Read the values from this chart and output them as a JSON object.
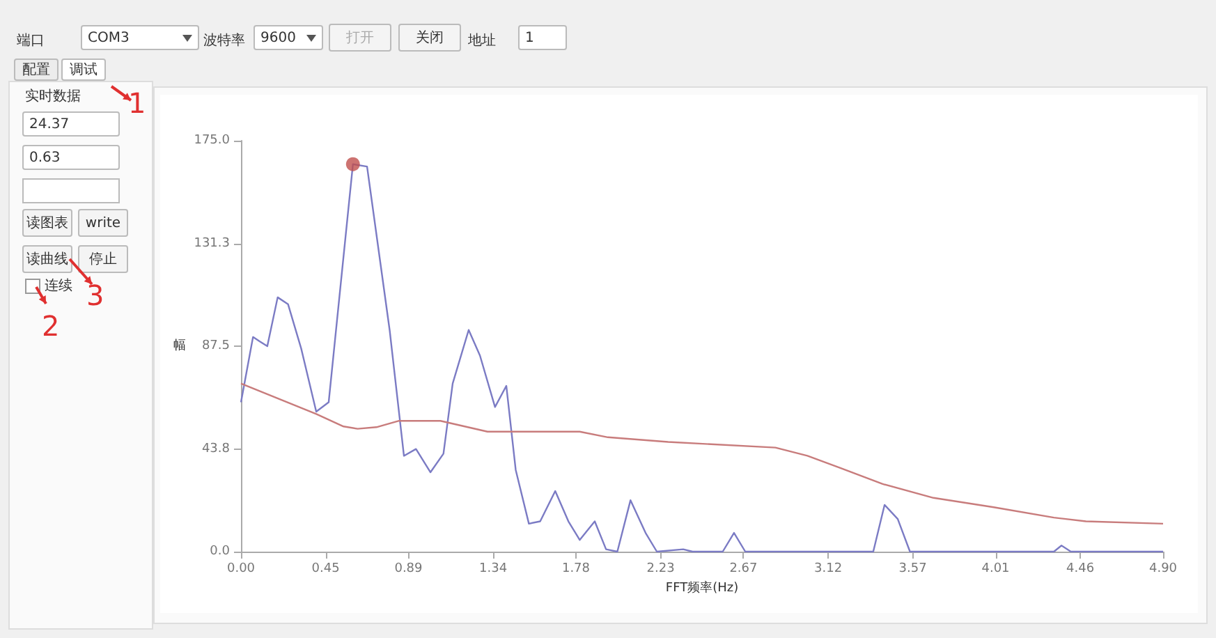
{
  "chart_data": {
    "type": "line",
    "xlabel": "FFT频率(Hz)",
    "ylabel": "幅",
    "xlim": [
      0,
      4.9
    ],
    "xticks": [
      {
        "value": 0,
        "label": "0.00"
      },
      {
        "value": 0.45,
        "label": "0.45"
      },
      {
        "value": 0.89,
        "label": "0.89"
      },
      {
        "value": 1.34,
        "label": "1.34"
      },
      {
        "value": 1.78,
        "label": "1.78"
      },
      {
        "value": 2.23,
        "label": "2.23"
      },
      {
        "value": 2.67,
        "label": "2.67"
      },
      {
        "value": 3.12,
        "label": "3.12"
      },
      {
        "value": 3.57,
        "label": "3.57"
      },
      {
        "value": 4.01,
        "label": "4.01"
      },
      {
        "value": 4.46,
        "label": "4.46"
      },
      {
        "value": 4.9,
        "label": "4.90"
      }
    ],
    "ylim": [
      0,
      175
    ],
    "yticks": [
      {
        "value": 0,
        "label": "0.0"
      },
      {
        "value": 43.75,
        "label": "43.8"
      },
      {
        "value": 87.5,
        "label": "87.5"
      },
      {
        "value": 131.25,
        "label": "131.3"
      },
      {
        "value": 175,
        "label": "175.0"
      }
    ],
    "grid": false,
    "marker": "none",
    "line_style": "solid",
    "series": [
      {
        "color": "#7b7bc4",
        "x": [
          0,
          0.064,
          0.1,
          0.14,
          0.195,
          0.25,
          0.32,
          0.4,
          0.466,
          0.595,
          0.67,
          0.79,
          0.866,
          0.93,
          1.007,
          1.076,
          1.125,
          1.21,
          1.27,
          1.35,
          1.41,
          1.46,
          1.53,
          1.59,
          1.67,
          1.74,
          1.8,
          1.88,
          1.94,
          2.0,
          2.07,
          2.15,
          2.21,
          2.35,
          2.4,
          2.56,
          2.62,
          2.68,
          3.36,
          3.42,
          3.49,
          3.555,
          4.32,
          4.36,
          4.41,
          4.9
        ],
        "values": [
          63.6,
          91.4,
          89.5,
          87.5,
          108.3,
          105.4,
          86.5,
          59.6,
          63.6,
          165,
          164,
          94.4,
          40.8,
          43.7,
          33.8,
          41.7,
          71.6,
          94.4,
          83.5,
          61.6,
          70.6,
          34.8,
          11.9,
          12.9,
          25.8,
          12.9,
          5,
          12.9,
          1,
          0,
          21.9,
          8,
          0,
          1,
          0,
          0,
          8,
          0,
          0,
          19.9,
          13.9,
          0,
          0,
          2.6,
          0,
          0
        ]
      },
      {
        "color": "#c87c7c",
        "x": [
          0,
          0.4,
          0.545,
          0.62,
          0.72,
          0.84,
          1.06,
          1.31,
          1.8,
          1.95,
          2.27,
          2.84,
          3.01,
          3.18,
          3.41,
          3.68,
          4.0,
          4.32,
          4.49,
          4.9
        ],
        "values": [
          71.6,
          58.6,
          53.3,
          52.3,
          53,
          55.7,
          55.7,
          51.1,
          51.1,
          48.7,
          46.7,
          44.3,
          40.8,
          35.8,
          28.8,
          22.9,
          18.9,
          14.5,
          12.9,
          11.9
        ]
      },
      {
        "type": "scatter",
        "marker": "circle",
        "color": "#c0504d",
        "x": [
          0.595
        ],
        "values": [
          165
        ]
      }
    ],
    "annotations": [
      "端口",
      "COM3",
      "波特率",
      "9600",
      "打开",
      "关闭",
      "地址",
      "1",
      "配置",
      "调试",
      "实时数据",
      "24.37",
      "0.63",
      "读图表",
      "write",
      "读曲线",
      "停止",
      "连续",
      "1",
      "3",
      "2"
    ]
  }
}
